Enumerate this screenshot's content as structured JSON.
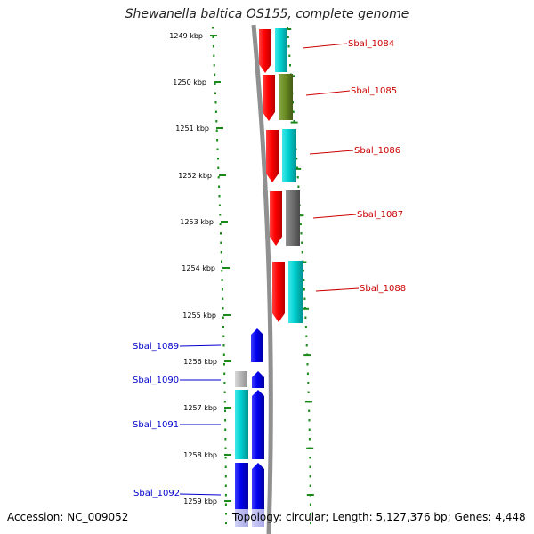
{
  "title": "Shewanella baltica OS155, complete genome",
  "footer": {
    "accession": "Accession: NC_009052",
    "summary": "Topology: circular; Length: 5,127,376 bp; Genes: 4,448"
  },
  "ruler": {
    "labels": [
      "1249 kbp",
      "1250 kbp",
      "1251 kbp",
      "1252 kbp",
      "1253 kbp",
      "1254 kbp",
      "1255 kbp",
      "1256 kbp",
      "1257 kbp",
      "1258 kbp",
      "1259 kbp"
    ]
  },
  "colors": {
    "red": "#ff0000",
    "cyan": "#00d0d0",
    "olive": "#6b8e23",
    "gray": "#707070",
    "silver": "#b8b8b8",
    "blue": "#0000ee",
    "green_tick": "#1a8a1a",
    "forward_label": "#cc0000",
    "reverse_label": "#0000cc"
  },
  "genes_right": [
    {
      "label": "Sbal_1084"
    },
    {
      "label": "Sbal_1085"
    },
    {
      "label": "Sbal_1086"
    },
    {
      "label": "Sbal_1087"
    },
    {
      "label": "Sbal_1088"
    }
  ],
  "genes_left": [
    {
      "label": "Sbal_1089"
    },
    {
      "label": "Sbal_1090"
    },
    {
      "label": "Sbal_1091"
    },
    {
      "label": "Sbal_1092"
    }
  ]
}
